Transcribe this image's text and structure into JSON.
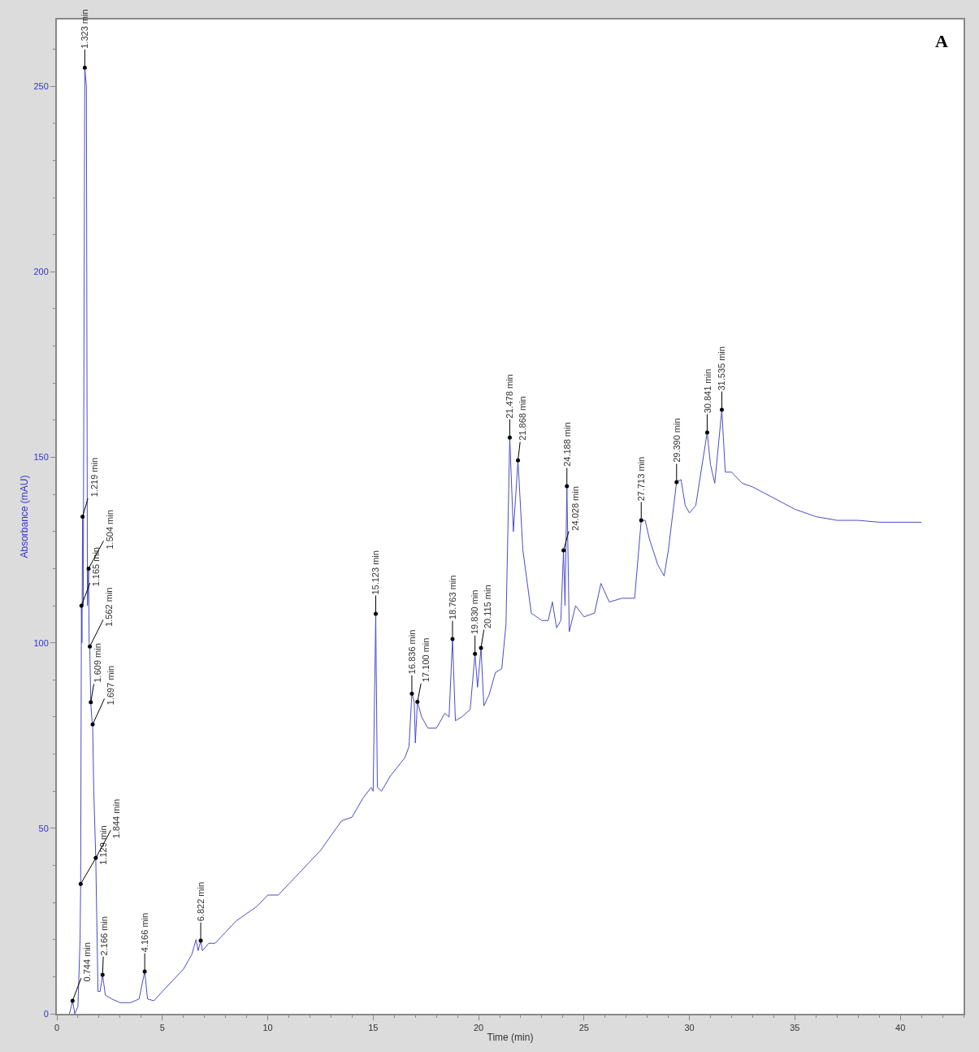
{
  "chart_data": {
    "type": "line",
    "xlabel": "Time (min)",
    "ylabel": "Absorbance (mAU)",
    "xlim": [
      0,
      43
    ],
    "ylim": [
      0,
      268
    ],
    "xticks": [
      0,
      5,
      10,
      15,
      20,
      25,
      30,
      35,
      40
    ],
    "yticks": [
      0,
      50,
      100,
      150,
      200,
      250
    ],
    "marker": "none",
    "line_style": "solid",
    "series": [
      {
        "color": "#4b4bc8",
        "x": [
          0.6,
          0.744,
          0.85,
          1.0,
          1.1,
          1.129,
          1.15,
          1.165,
          1.19,
          1.219,
          1.25,
          1.323,
          1.4,
          1.45,
          1.504,
          1.53,
          1.562,
          1.6,
          1.609,
          1.65,
          1.697,
          1.75,
          1.844,
          1.95,
          2.05,
          2.166,
          2.3,
          2.6,
          3.0,
          3.5,
          3.9,
          4.166,
          4.3,
          4.6,
          5.0,
          5.5,
          6.0,
          6.4,
          6.6,
          6.7,
          6.822,
          6.9,
          7.2,
          7.5,
          8.0,
          8.5,
          9.0,
          9.5,
          10.0,
          10.5,
          11.0,
          11.5,
          12.0,
          12.5,
          13.0,
          13.5,
          14.0,
          14.5,
          14.9,
          15.0,
          15.123,
          15.2,
          15.4,
          15.8,
          16.5,
          16.7,
          16.836,
          16.95,
          17.0,
          17.1,
          17.3,
          17.6,
          18.0,
          18.4,
          18.6,
          18.763,
          18.9,
          19.2,
          19.6,
          19.83,
          19.95,
          20.115,
          20.25,
          20.5,
          20.8,
          21.1,
          21.3,
          21.478,
          21.65,
          21.868,
          22.1,
          22.5,
          23.0,
          23.3,
          23.5,
          23.7,
          23.9,
          24.028,
          24.1,
          24.188,
          24.3,
          24.6,
          25.0,
          25.5,
          25.8,
          26.2,
          26.8,
          27.4,
          27.713,
          27.9,
          28.1,
          28.5,
          28.8,
          29.0,
          29.39,
          29.6,
          29.8,
          30.0,
          30.3,
          30.841,
          31.0,
          31.2,
          31.535,
          31.7,
          32.0,
          32.5,
          33.0,
          34.0,
          35.0,
          36.0,
          37.0,
          38.0,
          39.0,
          40.0,
          41.0
        ],
        "values": [
          0,
          3.5,
          0,
          2,
          20,
          35,
          80,
          110,
          100,
          134,
          110,
          255,
          250,
          110,
          120,
          100,
          99,
          86,
          84,
          80,
          78,
          60,
          42,
          6,
          6,
          10.5,
          5,
          4,
          3,
          3,
          4,
          11.4,
          4,
          3.5,
          6,
          9,
          12,
          16,
          20,
          17,
          19.7,
          17,
          19,
          19,
          22,
          25,
          27,
          29,
          32,
          32,
          35,
          38,
          41,
          44,
          48,
          52,
          53,
          58,
          61,
          60,
          107.8,
          61,
          60,
          64,
          69,
          72,
          86.3,
          84,
          73,
          84.1,
          80,
          77,
          77,
          81,
          80,
          101,
          79,
          80,
          82,
          97,
          88,
          98.6,
          83,
          86,
          92,
          93,
          105,
          155.3,
          130,
          149.2,
          125,
          108,
          106,
          106,
          111,
          104,
          106,
          124.9,
          110,
          142.2,
          103,
          110,
          107,
          108,
          116,
          111,
          112,
          112,
          133,
          133,
          128,
          121,
          118,
          125,
          143.3,
          144,
          137,
          135,
          137,
          156.7,
          148,
          143,
          162.8,
          146,
          146,
          143,
          142,
          139,
          136,
          134,
          133,
          133,
          132.5,
          132.5,
          132.5
        ]
      }
    ],
    "annotations": [
      "A",
      {
        "text": "0.744 min",
        "x": 0.744,
        "y": 3.5
      },
      {
        "text": "1.129 min",
        "x": 1.129,
        "y": 35
      },
      {
        "text": "1.165 min",
        "x": 1.165,
        "y": 110
      },
      {
        "text": "1.219 min",
        "x": 1.219,
        "y": 134
      },
      {
        "text": "1.323 min",
        "x": 1.323,
        "y": 255
      },
      {
        "text": "1.504 min",
        "x": 1.504,
        "y": 120
      },
      {
        "text": "1.562 min",
        "x": 1.562,
        "y": 99
      },
      {
        "text": "1.609 min",
        "x": 1.609,
        "y": 84
      },
      {
        "text": "1.697 min",
        "x": 1.697,
        "y": 78
      },
      {
        "text": "1.844 min",
        "x": 1.844,
        "y": 42
      },
      {
        "text": "2.166 min",
        "x": 2.166,
        "y": 10.5
      },
      {
        "text": "4.166 min",
        "x": 4.166,
        "y": 11.4
      },
      {
        "text": "6.822 min",
        "x": 6.822,
        "y": 19.7
      },
      {
        "text": "15.123 min",
        "x": 15.123,
        "y": 107.8
      },
      {
        "text": "16.836 min",
        "x": 16.836,
        "y": 86.3
      },
      {
        "text": "17.100 min",
        "x": 17.1,
        "y": 84.1
      },
      {
        "text": "18.763 min",
        "x": 18.763,
        "y": 101
      },
      {
        "text": "19.830 min",
        "x": 19.83,
        "y": 97
      },
      {
        "text": "20.115 min",
        "x": 20.115,
        "y": 98.6
      },
      {
        "text": "21.478 min",
        "x": 21.478,
        "y": 155.3
      },
      {
        "text": "21.868 min",
        "x": 21.868,
        "y": 149.2
      },
      {
        "text": "24.028 min",
        "x": 24.028,
        "y": 124.9
      },
      {
        "text": "24.188 min",
        "x": 24.188,
        "y": 142.2
      },
      {
        "text": "27.713 min",
        "x": 27.713,
        "y": 133
      },
      {
        "text": "29.390 min",
        "x": 29.39,
        "y": 143.3
      },
      {
        "text": "30.841 min",
        "x": 30.841,
        "y": 156.7
      },
      {
        "text": "31.535 min",
        "x": 31.535,
        "y": 162.8
      }
    ]
  }
}
